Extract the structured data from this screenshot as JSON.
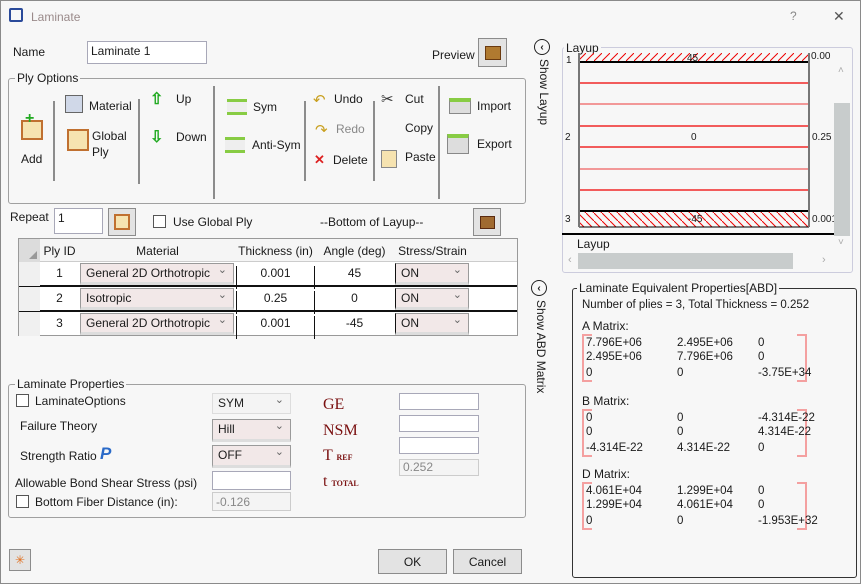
{
  "window": {
    "title": "Laminate",
    "help": "?",
    "close": "✕"
  },
  "name": {
    "label": "Name",
    "value": "Laminate 1"
  },
  "preview": {
    "label": "Preview"
  },
  "ply_options": {
    "title": "Ply Options",
    "add": "Add",
    "material": "Material",
    "global": "Global",
    "ply": "Ply",
    "up": "Up",
    "down": "Down",
    "sym": "Sym",
    "anti_sym": "Anti-Sym",
    "undo": "Undo",
    "redo": "Redo",
    "delete": "Delete",
    "cut": "Cut",
    "copy": "Copy",
    "paste": "Paste",
    "import": "Import",
    "export": "Export"
  },
  "repeat": {
    "label": "Repeat",
    "value": "1",
    "use_global_ply": "Use Global Ply",
    "bottom_of_layup": "--Bottom of Layup--"
  },
  "table": {
    "headers": [
      "Ply ID",
      "Material",
      "Thickness (in)",
      "Angle (deg)",
      "Stress/Strain"
    ],
    "rows": [
      [
        "1",
        "General 2D Orthotropic",
        "0.001",
        "45",
        "ON"
      ],
      [
        "2",
        "Isotropic",
        "0.25",
        "0",
        "ON"
      ],
      [
        "3",
        "General 2D Orthotropic",
        "0.001",
        "-45",
        "ON"
      ]
    ]
  },
  "laminate_properties": {
    "title": "Laminate Properties",
    "laminate_options": "LaminateOptions",
    "laminate_options_value": "SYM",
    "failure_theory": "Failure Theory",
    "failure_theory_value": "Hill",
    "strength_ratio": "Strength Ratio",
    "strength_ratio_value": "OFF",
    "bond_shear": "Allowable Bond Shear Stress (psi)",
    "bond_shear_value": "",
    "bottom_fiber": "Bottom Fiber Distance (in):",
    "bottom_fiber_value": "-0.126",
    "ge": "GE",
    "nsm": "NSM",
    "tref": "T",
    "tref_sub": "REF",
    "ttotal": "t",
    "ttotal_sub": "TOTAL",
    "ge_value": "",
    "nsm_value": "",
    "tref_value": "",
    "ttotal_value": "0.252"
  },
  "buttons": {
    "ok": "OK",
    "cancel": "Cancel"
  },
  "show_layup": "Show Layup",
  "show_abd": "Show ABD Matrix",
  "layup": {
    "title": "Layup",
    "axis_label": "Layup",
    "plies": [
      {
        "id": "1",
        "angle": "45",
        "thickness": "0.00"
      },
      {
        "id": "2",
        "angle": "0",
        "thickness": "0.25"
      },
      {
        "id": "3",
        "angle": "-45",
        "thickness": "0.001"
      }
    ]
  },
  "abd": {
    "title": "Laminate Equivalent Properties[ABD]",
    "summary": "Number of plies = 3, Total Thickness = 0.252",
    "a_label": "A Matrix:",
    "a": [
      [
        "7.796E+06",
        "2.495E+06",
        "0"
      ],
      [
        "2.495E+06",
        "7.796E+06",
        "0"
      ],
      [
        "0",
        "0",
        "-3.75E+34"
      ]
    ],
    "b_label": "B Matrix:",
    "b": [
      [
        "0",
        "0",
        "-4.314E-22"
      ],
      [
        "0",
        "0",
        "4.314E-22"
      ],
      [
        "-4.314E-22",
        "4.314E-22",
        "0"
      ]
    ],
    "d_label": "D Matrix:",
    "d": [
      [
        "4.061E+04",
        "1.299E+04",
        "0"
      ],
      [
        "1.299E+04",
        "4.061E+04",
        "0"
      ],
      [
        "0",
        "0",
        "-1.953E+32"
      ]
    ]
  },
  "colors": {
    "accent_red": "#e00000",
    "serif_label": "#7a1010",
    "bracket": "#f4a0a0"
  }
}
